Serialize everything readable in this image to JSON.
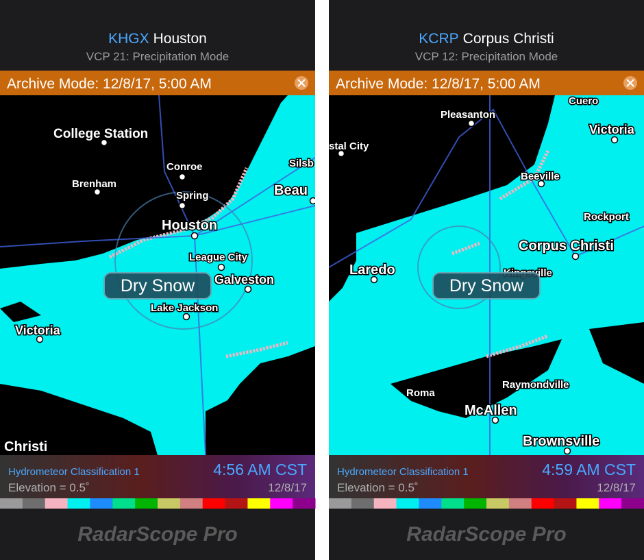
{
  "panels": [
    {
      "station": "KHGX",
      "city": "Houston",
      "mode": "VCP 21: Precipitation Mode",
      "archive": "Archive Mode: 12/8/17, 5:00 AM",
      "map_labels": [
        "College Station",
        "Conroe",
        "Brenham",
        "Spring",
        "Houston",
        "League City",
        "Galveston",
        "Lake Jackson",
        "Victoria",
        "Christi",
        "Silsb",
        "Beau"
      ],
      "overlay": "Dry Snow",
      "product": "Hydrometeor Classification 1",
      "time": "4:56 AM CST",
      "elevation": "Elevation = 0.5˚",
      "date": "12/8/17",
      "brand": "RadarScope Pro"
    },
    {
      "station": "KCRP",
      "city": "Corpus Christi",
      "mode": "VCP 12: Precipitation Mode",
      "archive": "Archive Mode: 12/8/17, 5:00 AM",
      "map_labels": [
        "Cuero",
        "Pleasanton",
        "Victoria",
        "stal City",
        "Beeville",
        "Rockport",
        "Corpus Christi",
        "Laredo",
        "Kingsville",
        "Raymondville",
        "Roma",
        "McAllen",
        "Brownsville"
      ],
      "overlay": "Dry Snow",
      "product": "Hydrometeor Classification 1",
      "time": "4:59 AM CST",
      "elevation": "Elevation = 0.5˚",
      "date": "12/8/17",
      "brand": "RadarScope Pro"
    }
  ],
  "legend_colors": [
    "#9a9a9a",
    "#6e6e6e",
    "#f5b4c0",
    "#00f0f0",
    "#1e8cff",
    "#00e08c",
    "#00b400",
    "#c8c864",
    "#d08080",
    "#ff0000",
    "#b41414",
    "#ffff00",
    "#ff00ff",
    "#8c008c"
  ]
}
